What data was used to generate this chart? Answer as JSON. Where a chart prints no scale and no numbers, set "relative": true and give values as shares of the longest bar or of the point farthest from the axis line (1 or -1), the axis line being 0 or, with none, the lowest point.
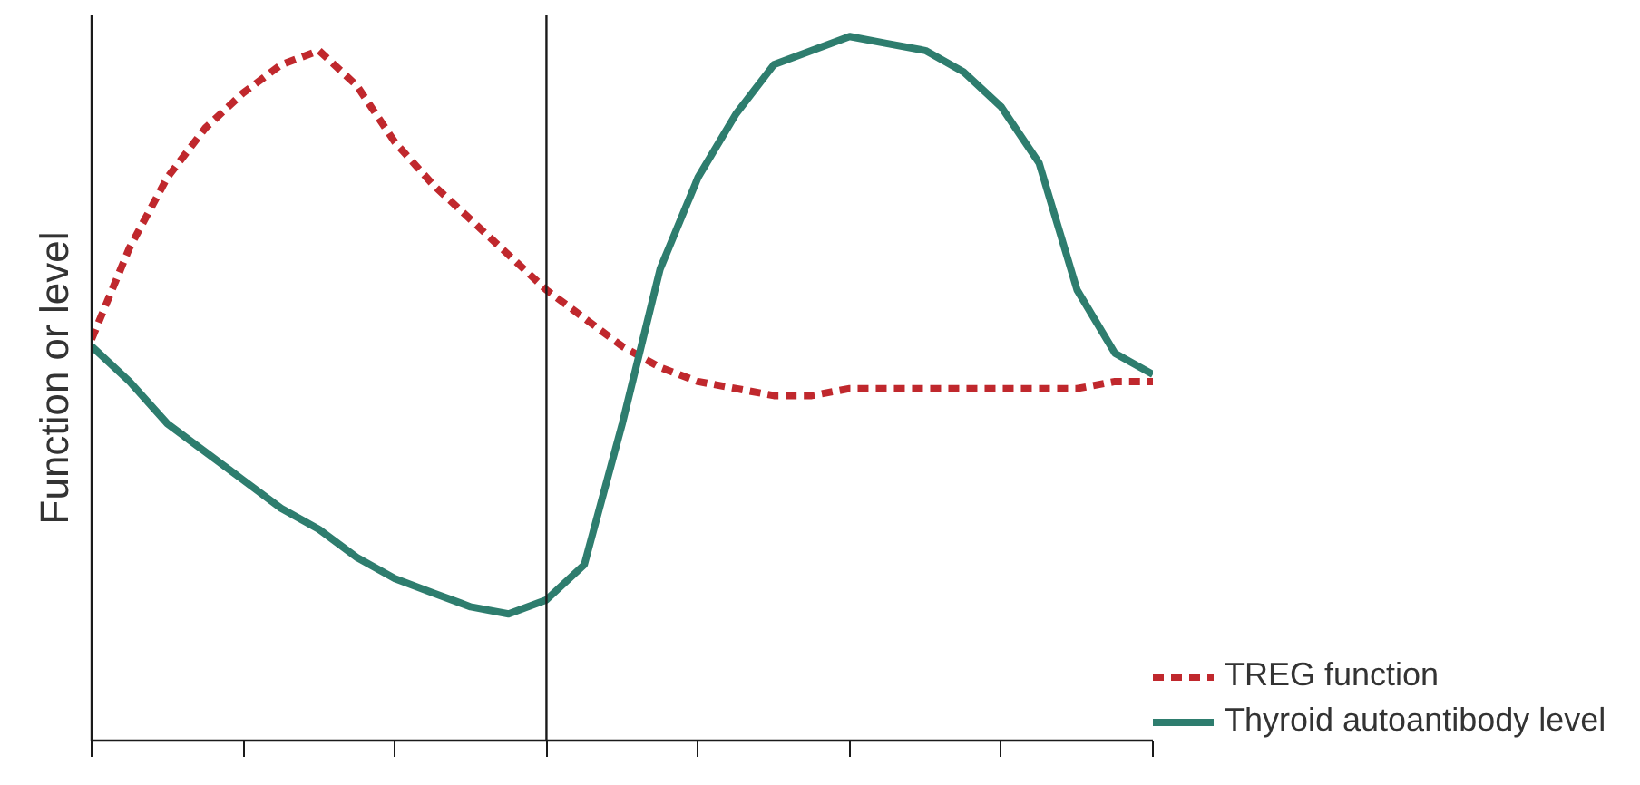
{
  "chart_data": {
    "type": "line",
    "relative": true,
    "ylabel": "Function or level",
    "categories": [
      null,
      null,
      null,
      null,
      null,
      null,
      null,
      null,
      null,
      null,
      null,
      null,
      null,
      null,
      null,
      null,
      null,
      null,
      null,
      null,
      null,
      null,
      null,
      null,
      null,
      null,
      null,
      null,
      null
    ],
    "grid": false,
    "legend": "bottom right",
    "marker": "none",
    "series": [
      {
        "name": "TREG function",
        "color": "#c0282d",
        "line_style": "dashed",
        "values": [
          0.57,
          0.7,
          0.8,
          0.87,
          0.92,
          0.96,
          0.98,
          0.93,
          0.85,
          0.79,
          0.74,
          0.69,
          0.64,
          0.6,
          0.56,
          0.53,
          0.51,
          0.5,
          0.49,
          0.49,
          0.5,
          0.5,
          0.5,
          0.5,
          0.5,
          0.5,
          0.5,
          0.51,
          0.51
        ]
      },
      {
        "name": "Thyroid autoantibody level",
        "color": "#2e7d6e",
        "line_style": "solid",
        "values": [
          0.56,
          0.51,
          0.45,
          0.41,
          0.37,
          0.33,
          0.3,
          0.26,
          0.23,
          0.21,
          0.19,
          0.18,
          0.2,
          0.25,
          0.45,
          0.67,
          0.8,
          0.89,
          0.96,
          0.98,
          1.0,
          0.99,
          0.98,
          0.95,
          0.9,
          0.82,
          0.64,
          0.55,
          0.52
        ]
      }
    ]
  }
}
